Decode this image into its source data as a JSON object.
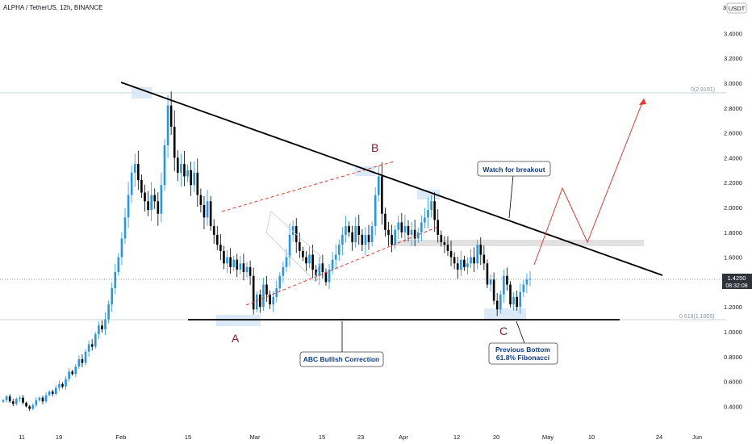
{
  "header": {
    "symbol": "ALPHA / TetherUS, 12h, BINANCE"
  },
  "price_scale": {
    "unit": "USDT",
    "current_price": "1.4250",
    "countdown": "08:32:08",
    "ticks": [
      "3.4000",
      "3.2000",
      "3.0000",
      "2.8000",
      "2.6000",
      "2.4000",
      "2.2000",
      "2.0000",
      "1.8000",
      "1.6000",
      "1.2000",
      "1.0000",
      "0.8000",
      "0.6000",
      "0.4000"
    ],
    "top_tick": "3"
  },
  "time_axis": {
    "ticks": [
      "11",
      "19",
      "Feb",
      "15",
      "Mar",
      "15",
      "23",
      "Apr",
      "12",
      "20",
      "May",
      "10",
      "24",
      "Jun"
    ]
  },
  "fib_labels": {
    "level_0": "0(2.9191)",
    "level_618": "0.618(1.1005)"
  },
  "wave_labels": {
    "a": "A",
    "b": "B",
    "c": "C"
  },
  "callouts": {
    "breakout": "Watch for breakout",
    "abc": "ABC Bullish Correction",
    "bottom_line1": "Previous Bottom",
    "bottom_line2": "61.8% Fibonacci"
  },
  "colors": {
    "up": "#2196F3",
    "down": "#000000",
    "wave_label": "#8B1A2B",
    "callout_text": "#0D3C8C",
    "projection": "#E53935",
    "highlight": "#D6E6F7"
  },
  "chart_data": {
    "type": "candlestick",
    "title": "ALPHA / TetherUS, 12h, BINANCE",
    "ylabel": "USDT",
    "ylim": [
      0.3,
      3.55
    ],
    "x_dates": [
      "Jan 11",
      "Jan 19",
      "Feb 1",
      "Feb 15",
      "Mar 1",
      "Mar 15",
      "Mar 23",
      "Apr 1",
      "Apr 12",
      "Apr 20",
      "May 1",
      "May 10",
      "May 24",
      "Jun 1"
    ],
    "last_price": 1.425,
    "fibonacci": [
      {
        "level": "0",
        "price": 2.9191
      },
      {
        "level": "0.618",
        "price": 1.1005
      }
    ],
    "trendlines": [
      {
        "name": "descending resistance",
        "from": [
          150,
          3.0
        ],
        "to": [
          820,
          1.52
        ]
      },
      {
        "name": "support",
        "from": [
          235,
          1.1
        ],
        "to": [
          768,
          1.1
        ]
      }
    ],
    "closes": [
      0.45,
      0.48,
      0.44,
      0.42,
      0.46,
      0.47,
      0.43,
      0.4,
      0.38,
      0.41,
      0.45,
      0.47,
      0.44,
      0.49,
      0.52,
      0.5,
      0.55,
      0.58,
      0.56,
      0.62,
      0.68,
      0.66,
      0.72,
      0.78,
      0.75,
      0.84,
      0.9,
      0.88,
      0.98,
      1.05,
      1.02,
      1.1,
      1.22,
      1.35,
      1.48,
      1.6,
      1.75,
      1.92,
      2.1,
      2.28,
      2.35,
      2.22,
      2.12,
      2.05,
      1.98,
      2.1,
      2.05,
      1.95,
      2.18,
      2.5,
      2.82,
      2.65,
      2.4,
      2.28,
      2.35,
      2.25,
      2.3,
      2.18,
      2.28,
      2.1,
      2.02,
      1.92,
      2.05,
      1.85,
      1.78,
      1.7,
      1.65,
      1.55,
      1.6,
      1.52,
      1.58,
      1.5,
      1.55,
      1.48,
      1.52,
      1.45,
      1.18,
      1.3,
      1.2,
      1.38,
      1.3,
      1.22,
      1.28,
      1.35,
      1.45,
      1.52,
      1.6,
      1.78,
      1.85,
      1.72,
      1.65,
      1.6,
      1.55,
      1.62,
      1.5,
      1.45,
      1.55,
      1.48,
      1.4,
      1.5,
      1.58,
      1.62,
      1.7,
      1.78,
      1.85,
      1.8,
      1.72,
      1.85,
      1.78,
      1.7,
      1.78,
      1.72,
      1.85,
      2.1,
      2.25,
      1.95,
      1.82,
      1.78,
      1.7,
      1.82,
      1.88,
      1.8,
      1.85,
      1.78,
      1.82,
      1.75,
      1.8,
      1.88,
      1.92,
      1.98,
      2.05,
      1.9,
      1.78,
      1.72,
      1.7,
      1.65,
      1.6,
      1.55,
      1.5,
      1.58,
      1.52,
      1.55,
      1.6,
      1.55,
      1.7,
      1.62,
      1.55,
      1.38,
      1.42,
      1.25,
      1.18,
      1.3,
      1.45,
      1.38,
      1.22,
      1.28,
      1.2,
      1.32,
      1.38,
      1.42,
      1.425
    ]
  }
}
